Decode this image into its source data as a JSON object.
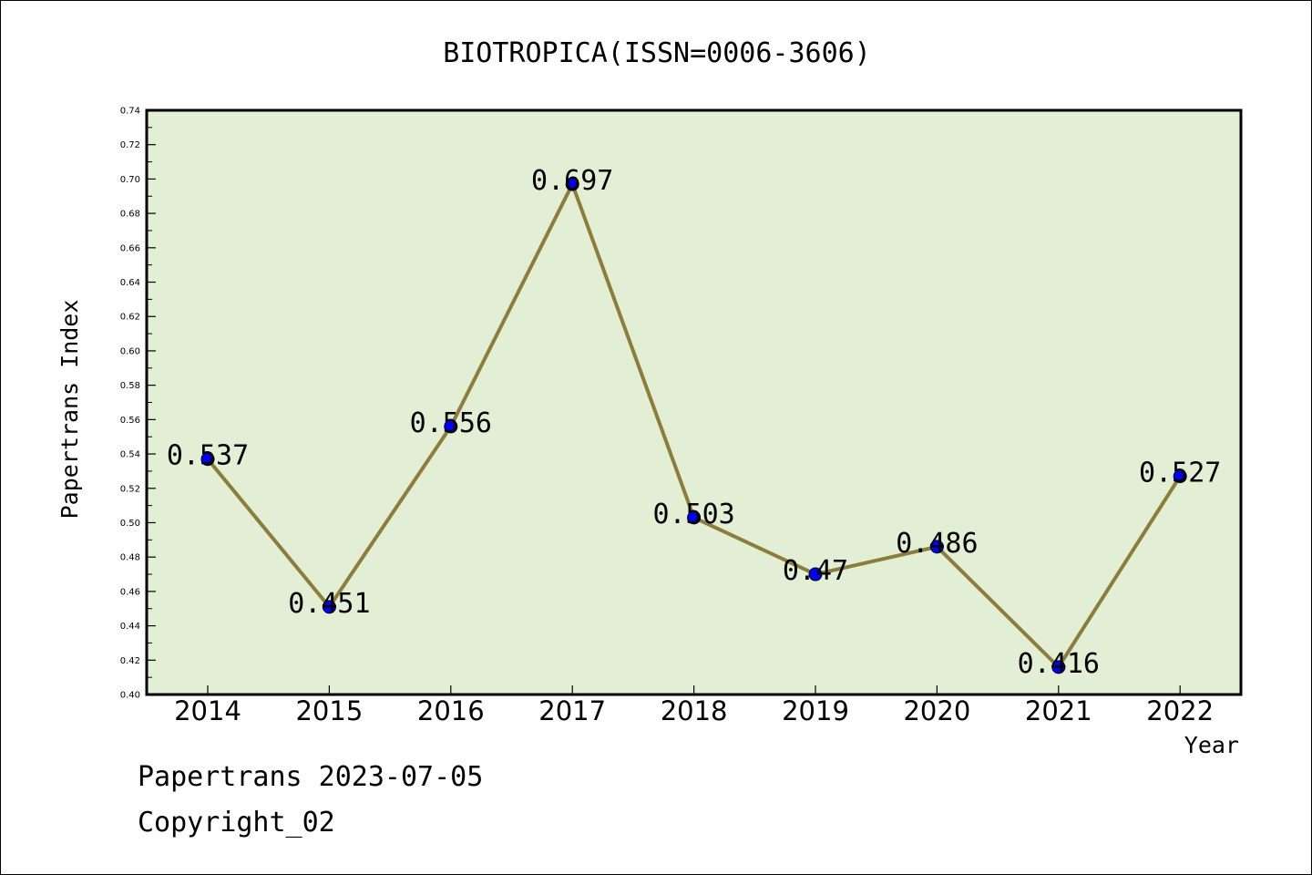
{
  "chart_data": {
    "type": "line",
    "title": "BIOTROPICA(ISSN=0006-3606)",
    "xlabel": "Year",
    "ylabel": "Papertrans Index",
    "categories": [
      "2014",
      "2015",
      "2016",
      "2017",
      "2018",
      "2019",
      "2020",
      "2021",
      "2022"
    ],
    "values": [
      0.537,
      0.451,
      0.556,
      0.697,
      0.503,
      0.47,
      0.486,
      0.416,
      0.527
    ],
    "data_labels": [
      "0.537",
      "0.451",
      "0.556",
      "0.697",
      "0.503",
      "0.47",
      "0.486",
      "0.416",
      "0.527"
    ],
    "ylim": [
      0.4,
      0.74
    ],
    "yticks": [
      "0.40",
      "0.42",
      "0.44",
      "0.46",
      "0.48",
      "0.50",
      "0.52",
      "0.54",
      "0.56",
      "0.58",
      "0.60",
      "0.62",
      "0.64",
      "0.66",
      "0.68",
      "0.70",
      "0.72",
      "0.74"
    ],
    "grid": false,
    "colors": {
      "plot_background": "#e2efd4",
      "line": "#8b7d3a",
      "marker": "#0000ff"
    }
  },
  "footer": {
    "line1": "Papertrans 2023-07-05",
    "line2": "Copyright_02"
  }
}
